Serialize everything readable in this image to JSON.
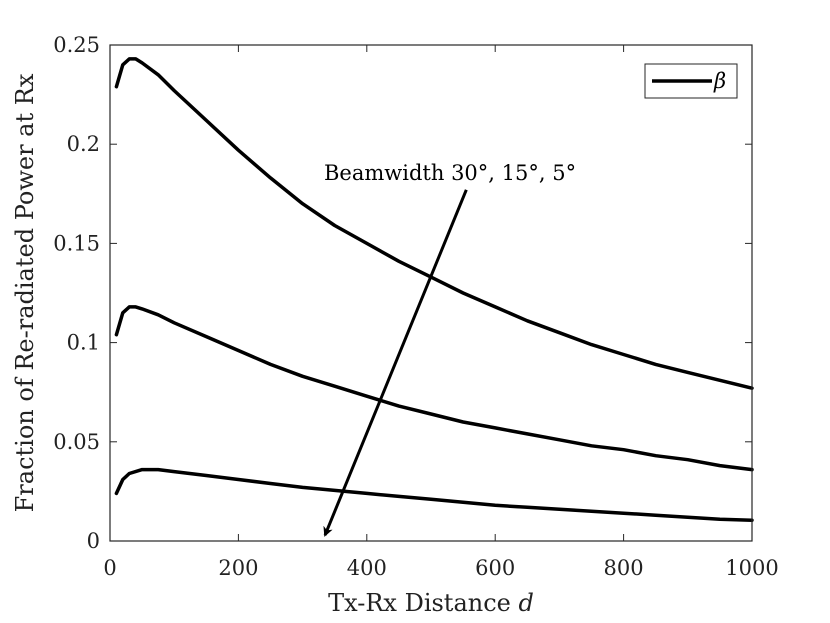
{
  "chart_data": {
    "type": "line",
    "xlabel_text": "Tx-Rx Distance ",
    "xlabel_var": "d",
    "ylabel": "Fraction of Re-radiated Power at Rx",
    "xlim": [
      0,
      1000
    ],
    "ylim": [
      0,
      0.25
    ],
    "xticks": [
      0,
      200,
      400,
      600,
      800,
      1000
    ],
    "xtick_labels": [
      "0",
      "200",
      "400",
      "600",
      "800",
      "1000"
    ],
    "yticks": [
      0,
      0.05,
      0.1,
      0.15,
      0.2,
      0.25
    ],
    "ytick_labels": [
      "0",
      "0.05",
      "0.1",
      "0.15",
      "0.2",
      "0.25"
    ],
    "grid": false,
    "legend": {
      "placement": "top-right",
      "entries": [
        "β"
      ]
    },
    "annotation": {
      "text": "Beamwidth 30°, 15°, 5°",
      "arrow_from": [
        555,
        0.177
      ],
      "arrow_to": [
        335,
        0.003
      ]
    },
    "series": [
      {
        "x": [
          10,
          20,
          30,
          40,
          50,
          75,
          100,
          150,
          200,
          250,
          300,
          350,
          400,
          450,
          500,
          550,
          600,
          650,
          700,
          750,
          800,
          850,
          900,
          950,
          1000
        ],
        "y": [
          0.229,
          0.24,
          0.243,
          0.243,
          0.241,
          0.235,
          0.227,
          0.212,
          0.197,
          0.183,
          0.17,
          0.159,
          0.15,
          0.141,
          0.133,
          0.125,
          0.118,
          0.111,
          0.105,
          0.099,
          0.094,
          0.089,
          0.085,
          0.081,
          0.077
        ]
      },
      {
        "x": [
          10,
          20,
          30,
          40,
          50,
          75,
          100,
          150,
          200,
          250,
          300,
          350,
          400,
          450,
          500,
          550,
          600,
          650,
          700,
          750,
          800,
          850,
          900,
          950,
          1000
        ],
        "y": [
          0.104,
          0.115,
          0.118,
          0.118,
          0.117,
          0.114,
          0.11,
          0.103,
          0.096,
          0.089,
          0.083,
          0.078,
          0.073,
          0.068,
          0.064,
          0.06,
          0.057,
          0.054,
          0.051,
          0.048,
          0.046,
          0.043,
          0.041,
          0.038,
          0.036
        ]
      },
      {
        "x": [
          10,
          20,
          30,
          50,
          75,
          100,
          150,
          200,
          250,
          300,
          350,
          400,
          450,
          500,
          550,
          600,
          650,
          700,
          750,
          800,
          850,
          900,
          950,
          1000
        ],
        "y": [
          0.024,
          0.031,
          0.034,
          0.036,
          0.036,
          0.035,
          0.033,
          0.031,
          0.029,
          0.027,
          0.0255,
          0.024,
          0.0225,
          0.021,
          0.0195,
          0.018,
          0.017,
          0.016,
          0.015,
          0.014,
          0.013,
          0.012,
          0.011,
          0.0105
        ]
      }
    ]
  }
}
